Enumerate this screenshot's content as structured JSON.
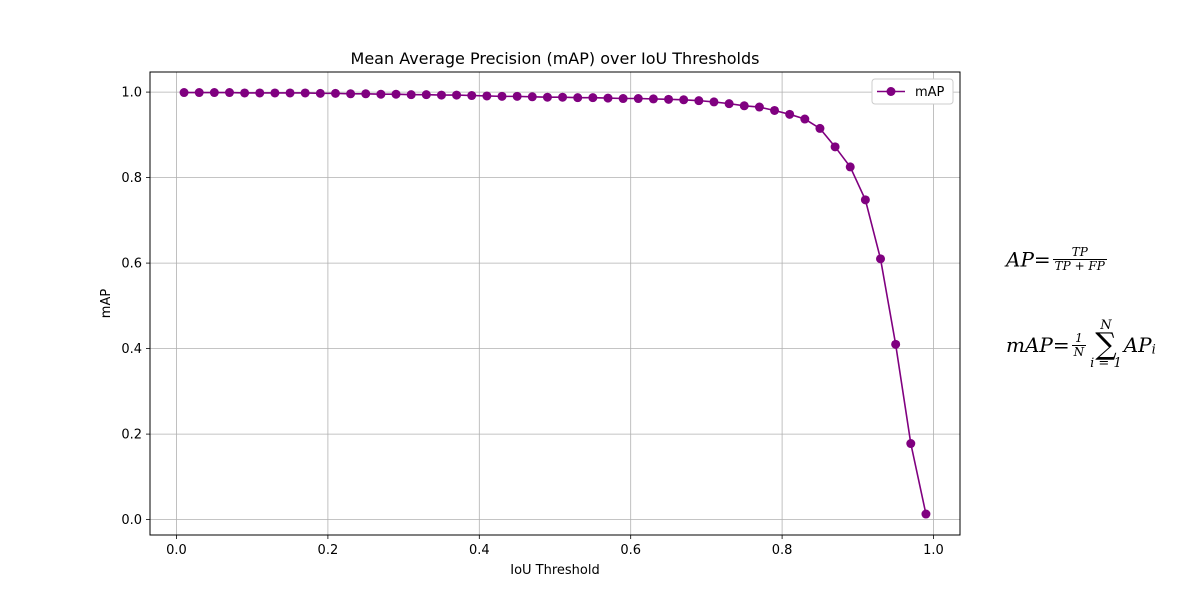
{
  "chart_data": {
    "type": "line",
    "title": "Mean Average Precision (mAP) over IoU Thresholds",
    "xlabel": "IoU Threshold",
    "ylabel": "mAP",
    "xlim": [
      -0.035,
      1.035
    ],
    "ylim": [
      -0.036,
      1.047
    ],
    "xticks": [
      "0.0",
      "0.2",
      "0.4",
      "0.6",
      "0.8",
      "1.0"
    ],
    "xtick_values": [
      0.0,
      0.2,
      0.4,
      0.6,
      0.8,
      1.0
    ],
    "yticks": [
      "0.0",
      "0.2",
      "0.4",
      "0.6",
      "0.8",
      "1.0"
    ],
    "ytick_values": [
      0.0,
      0.2,
      0.4,
      0.6,
      0.8,
      1.0
    ],
    "grid": true,
    "legend_position": "upper-right",
    "series": [
      {
        "name": "mAP",
        "color": "#800080",
        "marker": "circle",
        "x": [
          0.01,
          0.03,
          0.05,
          0.07,
          0.09,
          0.11,
          0.13,
          0.15,
          0.17,
          0.19,
          0.21,
          0.23,
          0.25,
          0.27,
          0.29,
          0.31,
          0.33,
          0.35,
          0.37,
          0.39,
          0.41,
          0.43,
          0.45,
          0.47,
          0.49,
          0.51,
          0.53,
          0.55,
          0.57,
          0.59,
          0.61,
          0.63,
          0.65,
          0.67,
          0.69,
          0.71,
          0.73,
          0.75,
          0.77,
          0.79,
          0.81,
          0.83,
          0.85,
          0.87,
          0.89,
          0.91,
          0.93,
          0.95,
          0.97,
          0.99
        ],
        "values": [
          0.999,
          0.999,
          0.999,
          0.999,
          0.998,
          0.998,
          0.998,
          0.998,
          0.998,
          0.997,
          0.997,
          0.996,
          0.996,
          0.995,
          0.995,
          0.994,
          0.994,
          0.993,
          0.993,
          0.992,
          0.991,
          0.99,
          0.99,
          0.989,
          0.988,
          0.988,
          0.987,
          0.987,
          0.986,
          0.985,
          0.985,
          0.984,
          0.983,
          0.982,
          0.98,
          0.977,
          0.973,
          0.968,
          0.965,
          0.957,
          0.948,
          0.937,
          0.915,
          0.872,
          0.825,
          0.748,
          0.61,
          0.41,
          0.178,
          0.013
        ]
      }
    ]
  },
  "formulas": {
    "ap_lhs": "AP",
    "ap_eq": "=",
    "ap_num": "TP",
    "ap_den": "TP + FP",
    "map_lhs": "mAP",
    "map_eq": "=",
    "map_frac_num": "1",
    "map_frac_den": "N",
    "map_sum_top": "N",
    "map_sum_sigma": "∑",
    "map_sum_bottom": "i = 1",
    "map_term": "AP",
    "map_term_sub": "i"
  }
}
